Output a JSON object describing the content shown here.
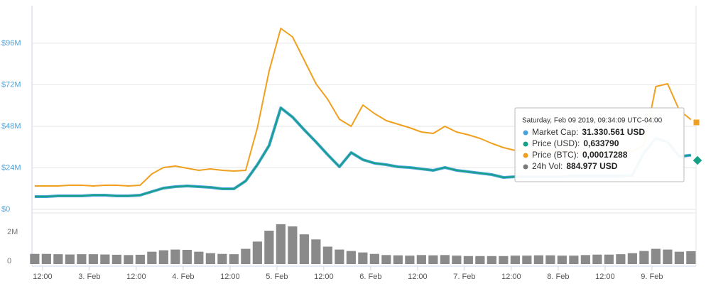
{
  "chart_data": [
    {
      "type": "line",
      "x": [
        -2,
        1,
        4,
        7,
        10,
        13,
        16,
        19,
        22,
        25,
        28,
        31,
        34,
        37,
        40,
        43,
        46,
        49,
        52,
        55,
        58,
        61,
        64,
        67,
        70,
        73,
        76,
        79,
        82,
        85,
        88,
        91,
        94,
        97,
        100,
        103,
        106,
        109,
        112,
        115,
        118,
        121,
        124,
        127,
        130,
        133,
        136,
        139,
        142,
        145,
        148,
        151,
        154,
        157,
        160,
        163,
        166
      ],
      "xlim": [
        -2.7,
        167.3
      ],
      "xticks": [
        {
          "value": 0,
          "label": "12:00"
        },
        {
          "value": 12,
          "label": "3. Feb"
        },
        {
          "value": 24,
          "label": "12:00"
        },
        {
          "value": 36,
          "label": "4. Feb"
        },
        {
          "value": 48,
          "label": "12:00"
        },
        {
          "value": 60,
          "label": "5. Feb"
        },
        {
          "value": 72,
          "label": "12:00"
        },
        {
          "value": 84,
          "label": "6. Feb"
        },
        {
          "value": 96,
          "label": "12:00"
        },
        {
          "value": 108,
          "label": "7. Feb"
        },
        {
          "value": 120,
          "label": "12:00"
        },
        {
          "value": 132,
          "label": "8. Feb"
        },
        {
          "value": 144,
          "label": "12:00"
        },
        {
          "value": 156,
          "label": "9. Feb"
        }
      ],
      "ylim": [
        0,
        117700000
      ],
      "yticks": [
        {
          "value": 0,
          "label": "$0"
        },
        {
          "value": 24000000,
          "label": "$24M"
        },
        {
          "value": 48000000,
          "label": "$48M"
        },
        {
          "value": 72000000,
          "label": "$72M"
        },
        {
          "value": 96000000,
          "label": "$96M"
        }
      ],
      "y2lim": [
        0,
        0.0003925
      ],
      "y3lim": [
        0,
        2.382
      ],
      "grid": true,
      "series": [
        {
          "color": "#f0a01e",
          "axis": "y2",
          "values": [
            4.51e-05,
            4.51e-05,
            4.51e-05,
            4.65e-05,
            4.65e-05,
            4.51e-05,
            4.65e-05,
            4.65e-05,
            4.51e-05,
            4.65e-05,
            6.84e-05,
            8.07e-05,
            8.34e-05,
            7.93e-05,
            7.52e-05,
            7.79e-05,
            7.52e-05,
            7.38e-05,
            7.52e-05,
            0.0001573,
            0.0002667,
            0.0003487,
            0.0003323,
            0.0002872,
            0.0002421,
            0.000212,
            0.0001737,
            0.00016,
            0.000201,
            0.0001846,
            0.0001709,
            0.0001641,
            0.0001573,
            0.0001491,
            0.0001463,
            0.00016,
            0.0001491,
            0.0001436,
            0.0001368,
            0.0001272,
            0.000119,
            0.0001135,
            0.0001135,
            0.0001121,
            0.0001121,
            0.0001121,
            0.0001108,
            0.0001108,
            0.0001108,
            0.0001108,
            0.0001108,
            0.0001121,
            0.0001231,
            0.0002366,
            0.0002421,
            0.0001915,
            0.00017288
          ]
        },
        {
          "color": "#4aa3df",
          "values": [
            7380000,
            7380000,
            7790000,
            7790000,
            7790000,
            8210000,
            8210000,
            7790000,
            7790000,
            8210000,
            10260000,
            12310000,
            13130000,
            13540000,
            13130000,
            12720000,
            11900000,
            11900000,
            16410000,
            25850000,
            36920000,
            58670000,
            53330000,
            45950000,
            38970000,
            31590000,
            24620000,
            32820000,
            28720000,
            26670000,
            25850000,
            24620000,
            24210000,
            23380000,
            22560000,
            24210000,
            22560000,
            21740000,
            20920000,
            20100000,
            18460000,
            18870000,
            18870000,
            18870000,
            18870000,
            18870000,
            19280000,
            19280000,
            19280000,
            19280000,
            19280000,
            19690000,
            32820000,
            41030000,
            38970000,
            30500000,
            31330561
          ]
        },
        {
          "color": "#16a085",
          "axis": "y3",
          "values": [
            0.1493,
            0.1493,
            0.1576,
            0.1576,
            0.1576,
            0.1661,
            0.1661,
            0.1576,
            0.1576,
            0.1661,
            0.2076,
            0.249,
            0.2656,
            0.2739,
            0.2656,
            0.2573,
            0.2407,
            0.2407,
            0.332,
            0.5229,
            0.7469,
            1.1868,
            1.0788,
            0.9295,
            0.7883,
            0.639,
            0.498,
            0.6639,
            0.581,
            0.5395,
            0.5229,
            0.498,
            0.4897,
            0.473,
            0.4564,
            0.4897,
            0.4564,
            0.4398,
            0.4232,
            0.4066,
            0.3734,
            0.3817,
            0.3817,
            0.3817,
            0.3817,
            0.3817,
            0.39,
            0.39,
            0.39,
            0.39,
            0.39,
            0.3983,
            0.6639,
            0.83,
            0.7883,
            0.617,
            0.63379
          ]
        }
      ]
    },
    {
      "type": "bar",
      "ylim": [
        0,
        3430000
      ],
      "yticks": [
        0,
        {
          "value": 2000000,
          "label": "2M"
        }
      ],
      "color": "#8a8a8a",
      "values": [
        700000,
        700000,
        680000,
        660000,
        680000,
        680000,
        660000,
        640000,
        620000,
        640000,
        850000,
        950000,
        1000000,
        980000,
        850000,
        750000,
        700000,
        680000,
        1050000,
        1550000,
        2300000,
        2750000,
        2600000,
        2050000,
        1700000,
        1200000,
        1000000,
        900000,
        800000,
        700000,
        620000,
        600000,
        580000,
        620000,
        600000,
        620000,
        580000,
        550000,
        550000,
        550000,
        550000,
        580000,
        580000,
        600000,
        600000,
        580000,
        580000,
        620000,
        650000,
        650000,
        680000,
        750000,
        900000,
        1050000,
        1000000,
        850000,
        884977
      ]
    }
  ],
  "tooltip": {
    "title": "Saturday, Feb 09 2019, 09:34:09 UTC-04:00",
    "items": [
      {
        "label": "Market Cap:",
        "value": "31.330.561 USD",
        "color": "#4aa3df"
      },
      {
        "label": "Price (USD):",
        "value": "0,633790",
        "color": "#16a085"
      },
      {
        "label": "Price (BTC):",
        "value": "0,00017288",
        "color": "#f0a01e"
      },
      {
        "label": "24h Vol:",
        "value": "884.977 USD",
        "color": "#7a7a7a"
      }
    ]
  }
}
